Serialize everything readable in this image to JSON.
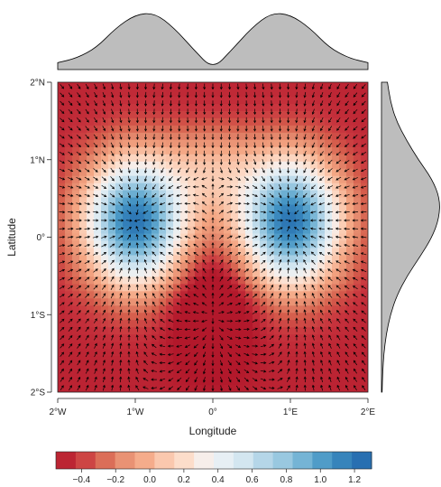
{
  "chart_data": {
    "type": "heatmap",
    "subtype": "vector-field-with-marginal-density",
    "title": "",
    "xlabel": "Longitude",
    "ylabel": "Latitude",
    "xlim": [
      -2,
      2
    ],
    "ylim": [
      -2,
      2
    ],
    "x_ticks": [
      {
        "value": -2,
        "label": "2°W"
      },
      {
        "value": -1,
        "label": "1°W"
      },
      {
        "value": 0,
        "label": "0°"
      },
      {
        "value": 1,
        "label": "1°E"
      },
      {
        "value": 2,
        "label": "2°E"
      }
    ],
    "y_ticks": [
      {
        "value": 2,
        "label": "2°N"
      },
      {
        "value": 1,
        "label": "1°N"
      },
      {
        "value": 0,
        "label": "0°"
      },
      {
        "value": -1,
        "label": "1°S"
      },
      {
        "value": -2,
        "label": "2°S"
      }
    ],
    "field_features": [
      {
        "kind": "positive-peak",
        "x": -1,
        "y": 0.2,
        "value": 1.2
      },
      {
        "kind": "positive-peak",
        "x": 1,
        "y": 0.2,
        "value": 1.2
      },
      {
        "kind": "negative-trough",
        "x": 0,
        "y": -0.9,
        "value": -0.5
      }
    ],
    "colorbar": {
      "range": [
        -0.55,
        1.3
      ],
      "ticks": [
        -0.4,
        -0.2,
        0.0,
        0.2,
        0.4,
        0.6,
        0.8,
        1.0,
        1.2
      ],
      "tick_labels": [
        "−0.4",
        "−0.2",
        "0.0",
        "0.2",
        "0.4",
        "0.6",
        "0.8",
        "1.0",
        "1.2"
      ],
      "palette": [
        "#b2182b",
        "#c7333d",
        "#d6604d",
        "#e58a6e",
        "#f4a582",
        "#f9c4a9",
        "#fddbc7",
        "#f7eeea",
        "#e6eff4",
        "#d1e5f0",
        "#b0d3e7",
        "#92c5de",
        "#6aaed2",
        "#4393c3",
        "#2f7ab6",
        "#2166ac"
      ]
    },
    "x_marginal_density": {
      "x": [
        -2,
        -1.75,
        -1.5,
        -1.25,
        -1,
        -0.75,
        -0.5,
        -0.25,
        0,
        0.25,
        0.5,
        0.75,
        1,
        1.25,
        1.5,
        1.75,
        2
      ],
      "density": [
        0.12,
        0.2,
        0.38,
        0.72,
        0.95,
        0.98,
        0.72,
        0.35,
        0.0,
        0.35,
        0.72,
        0.98,
        0.95,
        0.72,
        0.38,
        0.2,
        0.12
      ]
    },
    "y_marginal_density": {
      "y": [
        2,
        1.75,
        1.5,
        1.25,
        1,
        0.75,
        0.5,
        0.25,
        0,
        -0.25,
        -0.5,
        -0.75,
        -1,
        -1.25,
        -1.5,
        -1.75,
        -2
      ],
      "density": [
        0.1,
        0.15,
        0.25,
        0.42,
        0.62,
        0.85,
        0.98,
        0.97,
        0.85,
        0.65,
        0.43,
        0.26,
        0.15,
        0.08,
        0.04,
        0.02,
        0.01
      ]
    },
    "fill_color": "#bdbdbd",
    "arrow_color": "#000000"
  }
}
